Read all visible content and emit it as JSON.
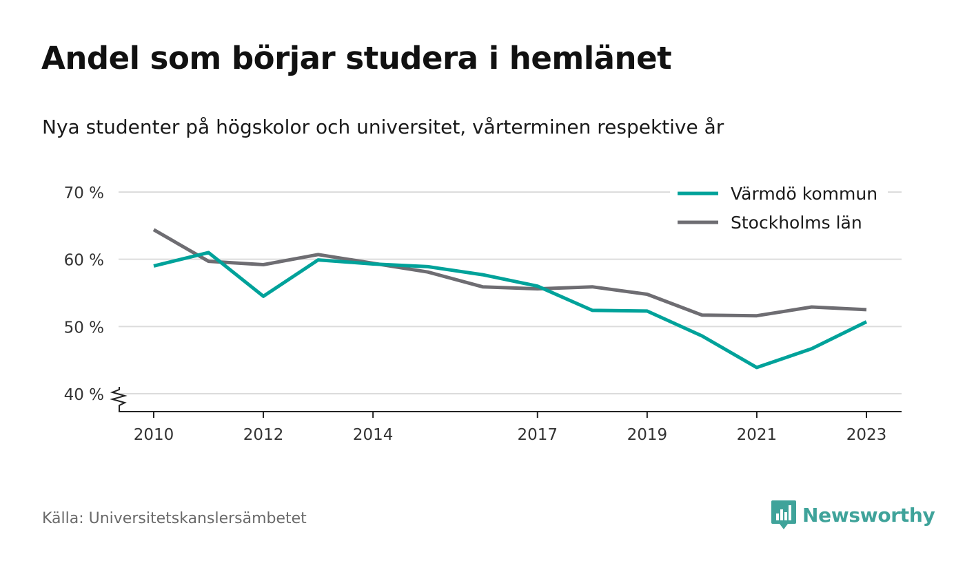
{
  "title": "Andel som börjar studera i hemlänet",
  "subtitle": "Nya studenter på högskolor och universitet, vårterminen respektive år",
  "source": "Källa: Universitetskanslersämbetet",
  "brand": {
    "name": "Newsworthy",
    "logo_icon": "bar-chart-speech-bubble-icon",
    "color": "#3fa39a"
  },
  "chart_data": {
    "type": "line",
    "x": [
      2010,
      2011,
      2012,
      2013,
      2014,
      2015,
      2016,
      2017,
      2018,
      2019,
      2020,
      2021,
      2022,
      2023
    ],
    "x_tick_labels": [
      "2010",
      "2012",
      "2014",
      "2017",
      "2019",
      "2021",
      "2023"
    ],
    "x_tick_values": [
      2010,
      2012,
      2014,
      2017,
      2019,
      2021,
      2023
    ],
    "y_tick_labels": [
      "40 %",
      "50 %",
      "60 %",
      "70 %"
    ],
    "y_tick_values": [
      40,
      50,
      60,
      70
    ],
    "ylim": [
      40,
      70
    ],
    "y_axis_break": true,
    "grid": "horizontal",
    "legend_position": "top-right",
    "series": [
      {
        "name": "Värmdö kommun",
        "color": "#00a29a",
        "values": [
          59.0,
          61.0,
          54.5,
          59.9,
          59.3,
          58.9,
          57.7,
          56.0,
          52.4,
          52.3,
          48.6,
          43.9,
          46.7,
          50.7
        ]
      },
      {
        "name": "Stockholms län",
        "color": "#6e6d72",
        "values": [
          64.4,
          59.7,
          59.2,
          60.7,
          59.4,
          58.1,
          55.9,
          55.6,
          55.9,
          54.8,
          51.7,
          51.6,
          52.9,
          52.5
        ]
      }
    ]
  }
}
